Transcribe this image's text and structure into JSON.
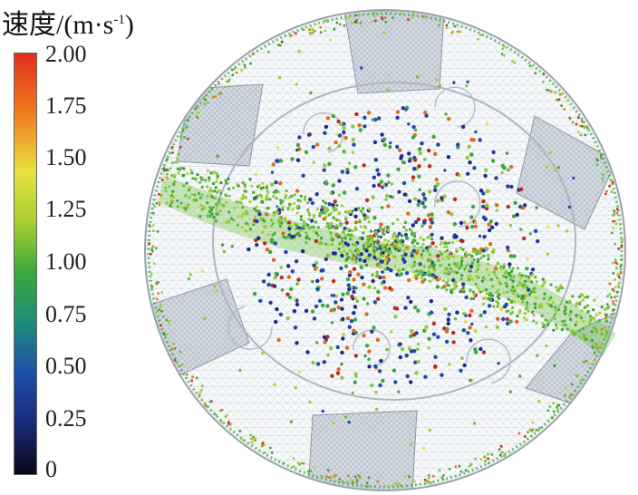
{
  "legend": {
    "title_main": "速度/(m·s",
    "title_sup": "-1",
    "title_end": ")",
    "ticks": [
      "2.00",
      "1.75",
      "1.50",
      "1.25",
      "1.00",
      "0.75",
      "0.50",
      "0.25",
      "0"
    ],
    "colorscale": [
      "#e0301e",
      "#f07a1e",
      "#e8e040",
      "#a8d030",
      "#3ca83c",
      "#1e8c7a",
      "#1e4ea8",
      "#1a2a7a",
      "#080818"
    ]
  }
}
